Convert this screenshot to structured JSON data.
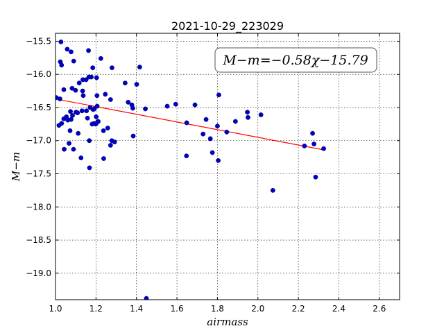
{
  "chart_data": {
    "type": "scatter",
    "title": "2021-10-29_223029",
    "xlabel": "airmass",
    "ylabel": "M−m",
    "xlim": [
      1.0,
      2.7
    ],
    "ylim": [
      -19.4,
      -15.38
    ],
    "xticks": [
      "1.0",
      "1.2",
      "1.4",
      "1.6",
      "1.8",
      "2.0",
      "2.2",
      "2.4",
      "2.6"
    ],
    "yticks": [
      "−15.5",
      "−16.0",
      "−16.5",
      "−17.0",
      "−17.5",
      "−18.0",
      "−18.5",
      "−19.0"
    ],
    "grid": true,
    "annotation": "M−m=−0.58χ−15.79",
    "annotation_position": "top-right",
    "fit": {
      "slope": -0.58,
      "intercept": -15.79,
      "color": "#ff0000"
    },
    "point_color": "#0000cc",
    "series": [
      {
        "x": [
          1.027,
          1.024,
          1.03,
          1.004,
          1.017,
          1.03,
          1.041,
          1.041,
          1.058,
          1.077,
          1.09,
          1.082,
          1.084,
          1.099,
          1.072,
          1.089,
          1.101,
          1.109,
          1.117,
          1.134,
          1.137,
          1.151,
          1.165,
          1.177,
          1.203,
          1.224,
          1.163,
          1.184,
          1.135,
          1.131,
          1.043,
          1.054,
          1.022,
          1.074,
          1.061,
          1.067,
          1.112,
          1.126,
          1.168,
          1.167,
          1.191,
          1.201,
          1.211,
          1.206,
          1.205,
          1.158,
          1.186,
          1.192,
          1.246,
          1.272,
          1.279,
          1.272,
          1.258,
          1.278,
          1.292,
          1.237,
          1.238,
          1.344,
          1.401,
          1.416,
          1.359,
          1.377,
          1.382,
          1.384,
          1.444,
          1.552,
          1.594,
          1.689,
          1.807,
          1.648,
          1.744,
          1.647,
          1.729,
          1.765,
          1.8,
          1.846,
          1.889,
          1.948,
          1.951,
          2.015,
          2.074,
          2.27,
          2.277,
          2.23,
          2.325,
          2.285,
          1.775,
          1.804,
          1.449,
          1.077,
          1.153,
          1.171,
          1.181,
          1.199,
          1.208
        ],
        "y": [
          -15.51,
          -15.81,
          -15.86,
          -16.35,
          -16.77,
          -16.74,
          -16.67,
          -16.23,
          -15.62,
          -15.66,
          -15.8,
          -16.21,
          -16.62,
          -16.24,
          -16.85,
          -17.13,
          -16.57,
          -16.58,
          -16.13,
          -16.25,
          -16.32,
          -16.08,
          -16.04,
          -16.04,
          -16.05,
          -15.76,
          -15.64,
          -15.9,
          -16.08,
          -16.55,
          -17.13,
          -16.64,
          -16.37,
          -16.56,
          -16.69,
          -17.04,
          -16.89,
          -17.26,
          -17.41,
          -17.0,
          -16.74,
          -16.64,
          -16.71,
          -16.48,
          -16.32,
          -16.66,
          -16.53,
          -16.52,
          -16.3,
          -16.38,
          -15.9,
          -17.07,
          -16.81,
          -17.0,
          -17.02,
          -16.85,
          -17.27,
          -16.13,
          -16.15,
          -15.89,
          -16.42,
          -16.46,
          -16.51,
          -16.93,
          -16.52,
          -16.48,
          -16.45,
          -16.46,
          -16.31,
          -16.73,
          -16.68,
          -17.23,
          -16.9,
          -16.97,
          -16.78,
          -16.87,
          -16.71,
          -16.57,
          -16.65,
          -16.61,
          -17.75,
          -16.89,
          -17.05,
          -17.08,
          -17.12,
          -17.55,
          -17.18,
          -17.3,
          -19.38,
          -16.68,
          -16.55,
          -16.5,
          -16.75,
          -16.75,
          -16.72
        ]
      }
    ]
  }
}
